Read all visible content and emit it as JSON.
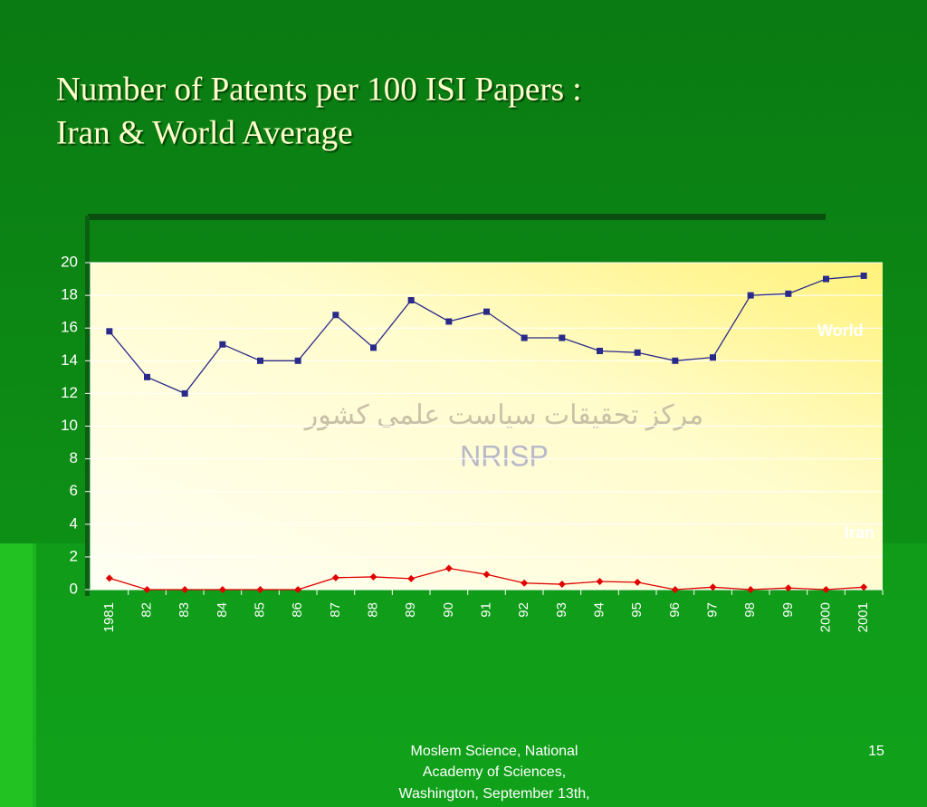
{
  "chart_data": {
    "type": "line",
    "title": [
      "Number of Patents per 100 ISI Papers :",
      "Iran & World Average"
    ],
    "categories": [
      "1981",
      "82",
      "83",
      "84",
      "85",
      "86",
      "87",
      "88",
      "89",
      "90",
      "91",
      "92",
      "93",
      "94",
      "95",
      "96",
      "97",
      "98",
      "99",
      "2000",
      "2001"
    ],
    "series": [
      {
        "name": "World",
        "color": "#2a2a8a",
        "values": [
          15.8,
          13,
          12,
          15,
          14,
          14,
          16.8,
          14.8,
          17.7,
          16.4,
          17,
          15.4,
          15.4,
          14.6,
          14.5,
          14,
          14.2,
          18,
          18.1,
          19,
          19.2
        ]
      },
      {
        "name": "Iran",
        "color": "#e00000",
        "values": [
          0.7,
          0,
          0,
          0,
          0,
          0,
          0.73,
          0.78,
          0.67,
          1.3,
          0.93,
          0.4,
          0.33,
          0.5,
          0.45,
          0,
          0.15,
          0,
          0.1,
          0,
          0.15
        ]
      }
    ],
    "ylim": [
      0,
      20
    ],
    "yticks": [
      0,
      2,
      4,
      6,
      8,
      10,
      12,
      14,
      16,
      18,
      20
    ],
    "grid": true,
    "annotations": [
      "مرکز تحقیقات سیاست علمی کشور",
      "NRISP"
    ]
  },
  "footer": {
    "text": [
      "Moslem Science, National",
      "Academy of Sciences,",
      "Washington, September 13th,"
    ],
    "page": "15"
  }
}
